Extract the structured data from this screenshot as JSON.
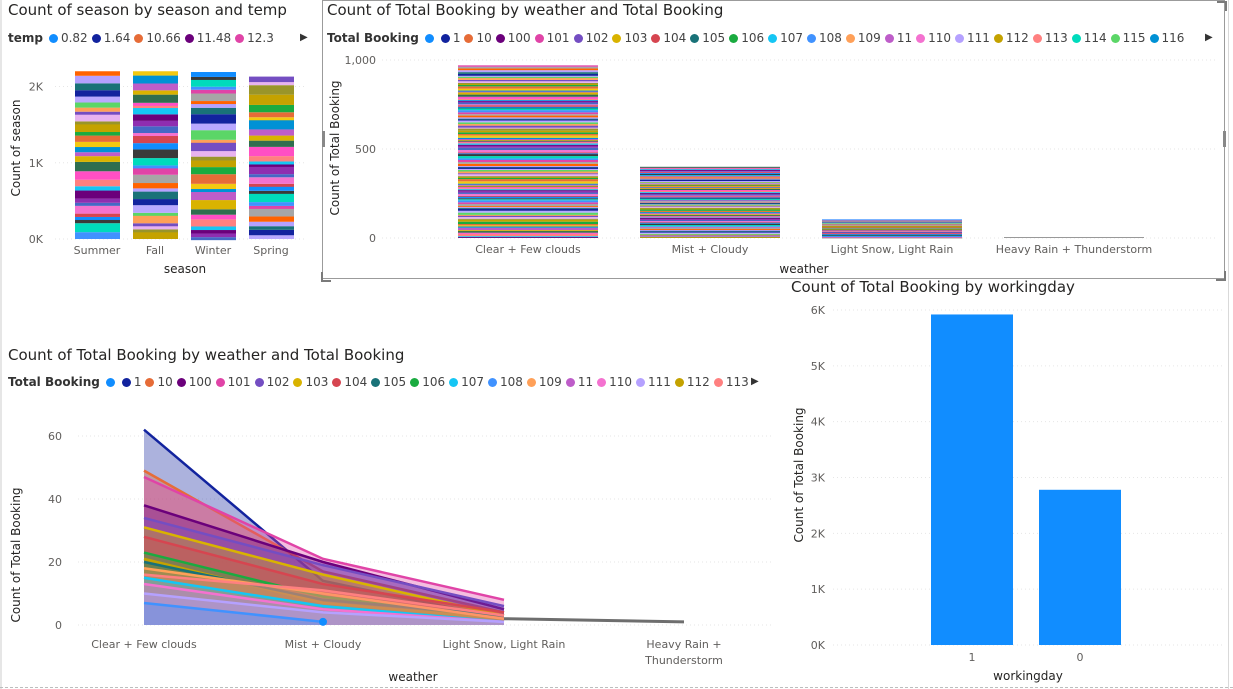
{
  "season_chart": {
    "title": "Count of season by season and temp",
    "legend_title": "temp",
    "legend_items": [
      {
        "label": "0.82",
        "color": "#118DFF"
      },
      {
        "label": "1.64",
        "color": "#12239E"
      },
      {
        "label": "10.66",
        "color": "#E66C37"
      },
      {
        "label": "11.48",
        "color": "#6B007B"
      },
      {
        "label": "12.3",
        "color": "#E044A7"
      }
    ],
    "y_ticks": [
      "2K",
      "1K",
      "0K"
    ],
    "ylabel": "Count of season",
    "xlabel": "season",
    "categories": [
      "Summer",
      "Fall",
      "Winter",
      "Spring"
    ]
  },
  "weather_bar_chart": {
    "title": "Count of Total Booking by weather and Total Booking",
    "legend_title": "Total Booking",
    "legend_items": [
      {
        "label": "",
        "color": "#118DFF"
      },
      {
        "label": "1",
        "color": "#12239E"
      },
      {
        "label": "10",
        "color": "#E66C37"
      },
      {
        "label": "100",
        "color": "#6B007B"
      },
      {
        "label": "101",
        "color": "#E044A7"
      },
      {
        "label": "102",
        "color": "#744EC2"
      },
      {
        "label": "103",
        "color": "#D9B300"
      },
      {
        "label": "104",
        "color": "#D64550"
      },
      {
        "label": "105",
        "color": "#197278"
      },
      {
        "label": "106",
        "color": "#1AAB40"
      },
      {
        "label": "107",
        "color": "#15C6F4"
      },
      {
        "label": "108",
        "color": "#4092FF"
      },
      {
        "label": "109",
        "color": "#FFA058"
      },
      {
        "label": "11",
        "color": "#BE5DC9"
      },
      {
        "label": "110",
        "color": "#F472D0"
      },
      {
        "label": "111",
        "color": "#B5A1FF"
      },
      {
        "label": "112",
        "color": "#C4A200"
      },
      {
        "label": "113",
        "color": "#FF8080"
      },
      {
        "label": "114",
        "color": "#00DBBC"
      },
      {
        "label": "115",
        "color": "#5BD667"
      },
      {
        "label": "116",
        "color": "#0091D5"
      }
    ],
    "y_ticks": [
      "1,000",
      "500",
      "0"
    ],
    "ylabel": "Count of Total Booking",
    "xlabel": "weather",
    "categories": [
      "Clear + Few clouds",
      "Mist + Cloudy",
      "Light Snow, Light Rain",
      "Heavy Rain + Thunderstorm"
    ]
  },
  "weather_area_chart": {
    "title": "Count of Total Booking by weather and Total Booking",
    "legend_title": "Total Booking",
    "legend_items": [
      {
        "label": "",
        "color": "#118DFF"
      },
      {
        "label": "1",
        "color": "#12239E"
      },
      {
        "label": "10",
        "color": "#E66C37"
      },
      {
        "label": "100",
        "color": "#6B007B"
      },
      {
        "label": "101",
        "color": "#E044A7"
      },
      {
        "label": "102",
        "color": "#744EC2"
      },
      {
        "label": "103",
        "color": "#D9B300"
      },
      {
        "label": "104",
        "color": "#D64550"
      },
      {
        "label": "105",
        "color": "#197278"
      },
      {
        "label": "106",
        "color": "#1AAB40"
      },
      {
        "label": "107",
        "color": "#15C6F4"
      },
      {
        "label": "108",
        "color": "#4092FF"
      },
      {
        "label": "109",
        "color": "#FFA058"
      },
      {
        "label": "11",
        "color": "#BE5DC9"
      },
      {
        "label": "110",
        "color": "#F472D0"
      },
      {
        "label": "111",
        "color": "#B5A1FF"
      },
      {
        "label": "112",
        "color": "#C4A200"
      },
      {
        "label": "113",
        "color": "#FF8080"
      }
    ],
    "y_ticks": [
      "60",
      "40",
      "20",
      "0"
    ],
    "ylabel": "Count of Total Booking",
    "xlabel": "weather",
    "categories": [
      "Clear + Few clouds",
      "Mist + Cloudy",
      "Light Snow, Light Rain",
      "Heavy Rain +",
      "Thunderstorm"
    ]
  },
  "workingday_chart": {
    "title": "Count of Total Booking by workingday",
    "y_ticks": [
      "6K",
      "5K",
      "4K",
      "3K",
      "2K",
      "1K",
      "0K"
    ],
    "ylabel": "Count of Total Booking",
    "xlabel": "workingday",
    "categories": [
      "1",
      "0"
    ]
  },
  "chart_data": [
    {
      "type": "bar",
      "title": "Count of season by season and temp",
      "xlabel": "season",
      "ylabel": "Count of season",
      "categories": [
        "Summer",
        "Fall",
        "Winter",
        "Spring"
      ],
      "values": [
        2200,
        2200,
        2190,
        2130
      ],
      "ylim": [
        0,
        2400
      ],
      "stacked": true,
      "grid": true,
      "legend": "top"
    },
    {
      "type": "bar",
      "title": "Count of Total Booking by weather and Total Booking",
      "xlabel": "weather",
      "ylabel": "Count of Total Booking",
      "categories": [
        "Clear + Few clouds",
        "Mist + Cloudy",
        "Light Snow, Light Rain",
        "Heavy Rain + Thunderstorm"
      ],
      "values": [
        970,
        400,
        105,
        1
      ],
      "ylim": [
        0,
        1000
      ],
      "stacked": true,
      "grid": true,
      "legend": "top"
    },
    {
      "type": "area",
      "title": "Count of Total Booking by weather and Total Booking",
      "xlabel": "weather",
      "ylabel": "Count of Total Booking",
      "categories": [
        "Clear + Few clouds",
        "Mist + Cloudy",
        "Light Snow, Light Rain",
        "Heavy Rain + Thunderstorm"
      ],
      "series": [
        {
          "name": "1",
          "values": [
            62,
            14,
            2,
            null
          ]
        },
        {
          "name": "10",
          "values": [
            49,
            17,
            4,
            null
          ]
        },
        {
          "name": "100",
          "values": [
            38,
            20,
            5,
            null
          ]
        },
        {
          "name": "101",
          "values": [
            47,
            21,
            8,
            null
          ]
        },
        {
          "name": "102",
          "values": [
            34,
            19,
            6,
            null
          ]
        },
        {
          "name": "103",
          "values": [
            31,
            16,
            3,
            null
          ]
        },
        {
          "name": "104",
          "values": [
            28,
            13,
            4,
            null
          ]
        },
        {
          "name": "105",
          "values": [
            20,
            8,
            3,
            null
          ]
        },
        {
          "name": "106",
          "values": [
            23,
            9,
            2,
            null
          ]
        },
        {
          "name": "107",
          "values": [
            15,
            6,
            1,
            null
          ]
        },
        {
          "name": "108",
          "values": [
            7,
            1,
            null,
            null
          ]
        },
        {
          "name": "109",
          "values": [
            18,
            10,
            2,
            null
          ]
        },
        {
          "name": "110",
          "values": [
            13,
            5,
            1,
            null
          ]
        },
        {
          "name": "111",
          "values": [
            10,
            4,
            1,
            null
          ]
        },
        {
          "name": "112",
          "values": [
            21,
            7,
            2,
            null
          ]
        },
        {
          "name": "113",
          "values": [
            16,
            11,
            3,
            null
          ]
        }
      ],
      "extra_series_value": {
        "Light Snow, Light Rain": 2,
        "Heavy Rain + Thunderstorm": 1
      },
      "ylim": [
        0,
        65
      ],
      "grid": true,
      "legend": "top"
    },
    {
      "type": "bar",
      "title": "Count of Total Booking by workingday",
      "xlabel": "workingday",
      "ylabel": "Count of Total Booking",
      "categories": [
        "1",
        "0"
      ],
      "values": [
        5920,
        2780
      ],
      "ylim": [
        0,
        6000
      ],
      "grid": true,
      "color": "#118DFF"
    }
  ]
}
